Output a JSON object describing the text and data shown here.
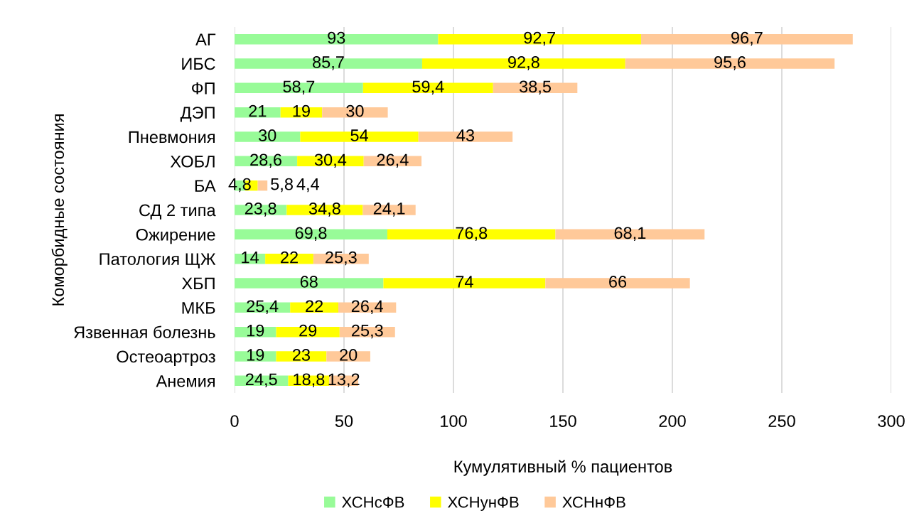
{
  "chart_data": {
    "type": "bar",
    "orientation": "horizontal",
    "stacked": true,
    "categories": [
      "АГ",
      "ИБС",
      "ФП",
      "ДЭП",
      "Пневмония",
      "ХОБЛ",
      "БА",
      "СД 2 типа",
      "Ожирение",
      "Патология ЩЖ",
      "ХБП",
      "МКБ",
      "Язвенная болезнь",
      "Остеоартроз",
      "Анемия"
    ],
    "series": [
      {
        "name": "ХСНсФВ",
        "color": "#98fb98",
        "values": [
          93,
          85.7,
          58.7,
          21,
          30,
          28.6,
          4.8,
          23.8,
          69.8,
          14,
          68,
          25.4,
          19,
          19,
          24.5
        ],
        "value_labels": [
          "93",
          "85,7",
          "58,7",
          "21",
          "30",
          "28,6",
          "4,8",
          "23,8",
          "69,8",
          "14",
          "68",
          "25,4",
          "19",
          "19",
          "24,5"
        ]
      },
      {
        "name": "ХСНунФВ",
        "color": "#ffff00",
        "values": [
          92.7,
          92.8,
          59.4,
          19,
          54,
          30.4,
          5.8,
          34.8,
          76.8,
          22,
          74,
          22,
          29,
          23,
          18.8
        ],
        "value_labels": [
          "92,7",
          "92,8",
          "59,4",
          "19",
          "54",
          "30,4",
          "5,8",
          "34,8",
          "76,8",
          "22",
          "74",
          "22",
          "29",
          "23",
          "18,8"
        ]
      },
      {
        "name": "ХСНнФВ",
        "color": "#ffc999",
        "values": [
          96.7,
          95.6,
          38.5,
          30,
          43,
          26.4,
          4.4,
          24.1,
          68.1,
          25.3,
          66,
          26.4,
          25.3,
          20,
          13.2
        ],
        "value_labels": [
          "96,7",
          "95,6",
          "38,5",
          "30",
          "43",
          "26,4",
          "4,4",
          "24,1",
          "68,1",
          "25,3",
          "66",
          "26,4",
          "25,3",
          "20",
          "13,2"
        ]
      }
    ],
    "xlim": [
      0,
      300
    ],
    "xticks": [
      0,
      50,
      100,
      150,
      200,
      250,
      300
    ],
    "xlabel": "Кумулятивный % пациентов",
    "ylabel": "Коморбидные состояния",
    "grid": "x",
    "legend": "bottom"
  }
}
